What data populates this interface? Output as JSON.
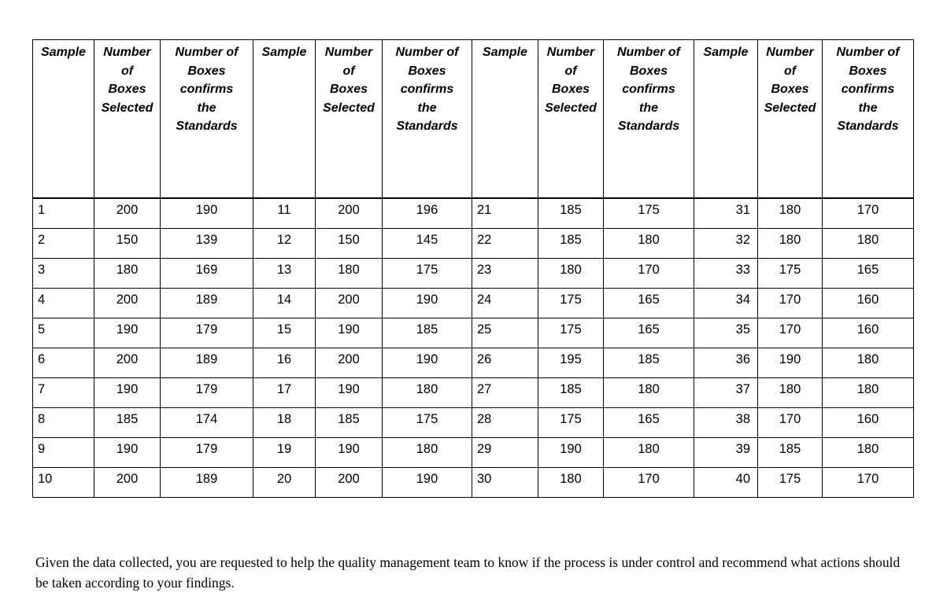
{
  "document": {
    "colors": {
      "background": "#ffffff",
      "text": "#000000",
      "table_border": "#000000"
    },
    "table": {
      "column_headers": {
        "sample": "Sample",
        "selected": "Number of Boxes Selected",
        "confirms": "Number of Boxes confirms the Standards",
        "sample_lines": [
          "Sample"
        ],
        "selected_lines": [
          "Number",
          "of",
          "Boxes",
          "Selected"
        ],
        "confirms_lines": [
          "Number of",
          "Boxes",
          "confirms",
          "the",
          "Standards"
        ]
      },
      "groups": [
        {
          "rows": [
            {
              "sample": 1,
              "selected": 200,
              "confirms": 190
            },
            {
              "sample": 2,
              "selected": 150,
              "confirms": 139
            },
            {
              "sample": 3,
              "selected": 180,
              "confirms": 169
            },
            {
              "sample": 4,
              "selected": 200,
              "confirms": 189
            },
            {
              "sample": 5,
              "selected": 190,
              "confirms": 179
            },
            {
              "sample": 6,
              "selected": 200,
              "confirms": 189
            },
            {
              "sample": 7,
              "selected": 190,
              "confirms": 179
            },
            {
              "sample": 8,
              "selected": 185,
              "confirms": 174
            },
            {
              "sample": 9,
              "selected": 190,
              "confirms": 179
            },
            {
              "sample": 10,
              "selected": 200,
              "confirms": 189
            }
          ]
        },
        {
          "rows": [
            {
              "sample": 11,
              "selected": 200,
              "confirms": 196
            },
            {
              "sample": 12,
              "selected": 150,
              "confirms": 145
            },
            {
              "sample": 13,
              "selected": 180,
              "confirms": 175
            },
            {
              "sample": 14,
              "selected": 200,
              "confirms": 190
            },
            {
              "sample": 15,
              "selected": 190,
              "confirms": 185
            },
            {
              "sample": 16,
              "selected": 200,
              "confirms": 190
            },
            {
              "sample": 17,
              "selected": 190,
              "confirms": 180
            },
            {
              "sample": 18,
              "selected": 185,
              "confirms": 175
            },
            {
              "sample": 19,
              "selected": 190,
              "confirms": 180
            },
            {
              "sample": 20,
              "selected": 200,
              "confirms": 190
            }
          ]
        },
        {
          "rows": [
            {
              "sample": 21,
              "selected": 185,
              "confirms": 175
            },
            {
              "sample": 22,
              "selected": 185,
              "confirms": 180
            },
            {
              "sample": 23,
              "selected": 180,
              "confirms": 170
            },
            {
              "sample": 24,
              "selected": 175,
              "confirms": 165
            },
            {
              "sample": 25,
              "selected": 175,
              "confirms": 165
            },
            {
              "sample": 26,
              "selected": 195,
              "confirms": 185
            },
            {
              "sample": 27,
              "selected": 185,
              "confirms": 180
            },
            {
              "sample": 28,
              "selected": 175,
              "confirms": 165
            },
            {
              "sample": 29,
              "selected": 190,
              "confirms": 180
            },
            {
              "sample": 30,
              "selected": 180,
              "confirms": 170
            }
          ]
        },
        {
          "rows": [
            {
              "sample": 31,
              "selected": 180,
              "confirms": 170
            },
            {
              "sample": 32,
              "selected": 180,
              "confirms": 180
            },
            {
              "sample": 33,
              "selected": 175,
              "confirms": 165
            },
            {
              "sample": 34,
              "selected": 170,
              "confirms": 160
            },
            {
              "sample": 35,
              "selected": 170,
              "confirms": 160
            },
            {
              "sample": 36,
              "selected": 190,
              "confirms": 180
            },
            {
              "sample": 37,
              "selected": 180,
              "confirms": 180
            },
            {
              "sample": 38,
              "selected": 170,
              "confirms": 160
            },
            {
              "sample": 39,
              "selected": 185,
              "confirms": 180
            },
            {
              "sample": 40,
              "selected": 175,
              "confirms": 170
            }
          ]
        }
      ]
    },
    "footer": {
      "paragraph_lines": [
        "Given the data collected, you are requested to help the quality management team to know if the process is under control and recommend what actions should",
        "be taken according to your findings."
      ]
    }
  }
}
